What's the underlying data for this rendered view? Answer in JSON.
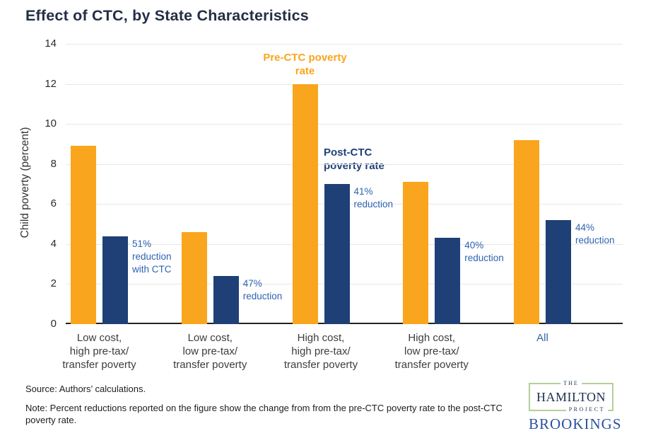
{
  "title": "Effect of CTC, by State Characteristics",
  "chart_data": {
    "type": "bar",
    "title": "Effect of CTC, by State Characteristics",
    "ylabel": "Child poverty (percent)",
    "ylim": [
      0,
      14
    ],
    "yticks": [
      0,
      2,
      4,
      6,
      8,
      10,
      12,
      14
    ],
    "grid": true,
    "legend_position": "inline labels above third group bars",
    "categories": [
      [
        "Low cost,",
        "high pre-tax/",
        "transfer poverty"
      ],
      [
        "Low cost,",
        "low pre-tax/",
        "transfer poverty"
      ],
      [
        "High cost,",
        "high pre-tax/",
        "transfer poverty"
      ],
      [
        "High cost,",
        "low pre-tax/",
        "transfer poverty"
      ],
      [
        "All"
      ]
    ],
    "series": [
      {
        "name": "Pre-CTC poverty rate",
        "color": "#F9A51D",
        "values": [
          8.9,
          4.6,
          12,
          7.1,
          9.2
        ]
      },
      {
        "name": "Post-CTC poverty rate",
        "color": "#1E4077",
        "values": [
          4.4,
          2.4,
          7,
          4.3,
          5.2
        ]
      }
    ],
    "reduction_labels": [
      [
        "51%",
        "reduction",
        "with CTC"
      ],
      [
        "47%",
        "reduction"
      ],
      [
        "41%",
        "reduction"
      ],
      [
        "40%",
        "reduction"
      ],
      [
        "44%",
        "reduction"
      ]
    ],
    "annotation_color": "#2E63B2",
    "all_label_color": "#3465AB"
  },
  "footer": {
    "source": "Source: Authors’ calculations.",
    "note": "Note: Percent reductions reported on the figure show the change from from the pre-CTC poverty rate to the post-CTC poverty rate."
  },
  "logos": {
    "hamilton_the": "THE",
    "hamilton_name": "HAMILTON",
    "hamilton_project": "PROJECT",
    "brookings": "BROOKINGS"
  }
}
